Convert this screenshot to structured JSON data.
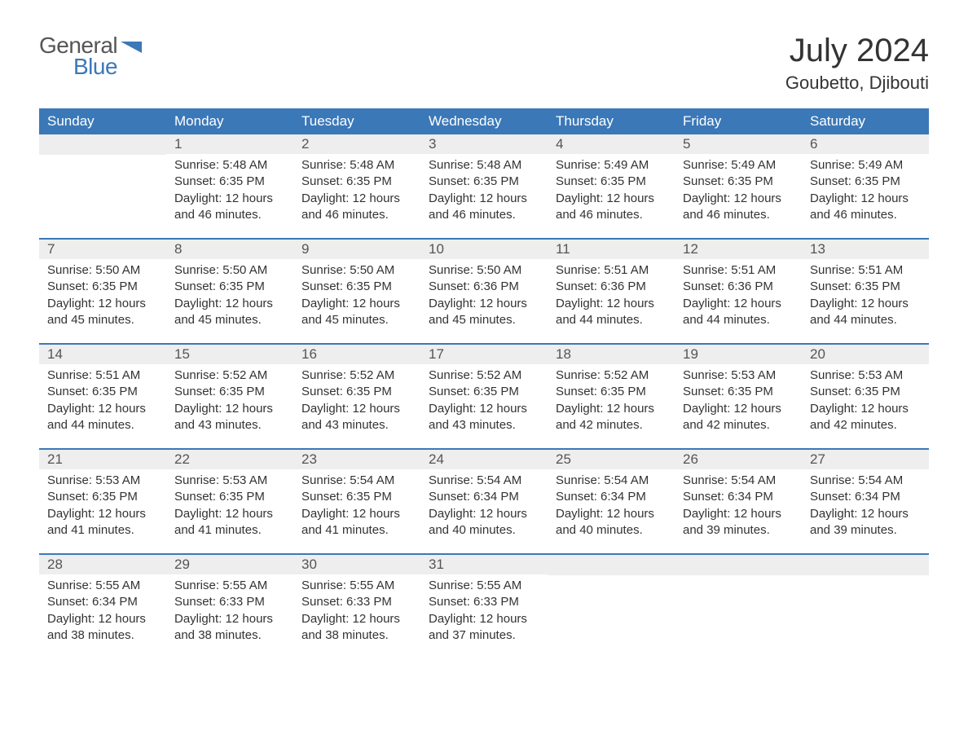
{
  "logo": {
    "text_gray": "General",
    "text_blue": "Blue",
    "shape_color": "#3b78b8"
  },
  "title": "July 2024",
  "location": "Goubetto, Djibouti",
  "colors": {
    "header_bg": "#3b78b8",
    "header_text": "#ffffff",
    "daynum_bg": "#eeeeee",
    "row_border": "#3b78b8",
    "text": "#333333"
  },
  "day_headers": [
    "Sunday",
    "Monday",
    "Tuesday",
    "Wednesday",
    "Thursday",
    "Friday",
    "Saturday"
  ],
  "weeks": [
    [
      null,
      {
        "n": "1",
        "sunrise": "Sunrise: 5:48 AM",
        "sunset": "Sunset: 6:35 PM",
        "daylight": "Daylight: 12 hours and 46 minutes."
      },
      {
        "n": "2",
        "sunrise": "Sunrise: 5:48 AM",
        "sunset": "Sunset: 6:35 PM",
        "daylight": "Daylight: 12 hours and 46 minutes."
      },
      {
        "n": "3",
        "sunrise": "Sunrise: 5:48 AM",
        "sunset": "Sunset: 6:35 PM",
        "daylight": "Daylight: 12 hours and 46 minutes."
      },
      {
        "n": "4",
        "sunrise": "Sunrise: 5:49 AM",
        "sunset": "Sunset: 6:35 PM",
        "daylight": "Daylight: 12 hours and 46 minutes."
      },
      {
        "n": "5",
        "sunrise": "Sunrise: 5:49 AM",
        "sunset": "Sunset: 6:35 PM",
        "daylight": "Daylight: 12 hours and 46 minutes."
      },
      {
        "n": "6",
        "sunrise": "Sunrise: 5:49 AM",
        "sunset": "Sunset: 6:35 PM",
        "daylight": "Daylight: 12 hours and 46 minutes."
      }
    ],
    [
      {
        "n": "7",
        "sunrise": "Sunrise: 5:50 AM",
        "sunset": "Sunset: 6:35 PM",
        "daylight": "Daylight: 12 hours and 45 minutes."
      },
      {
        "n": "8",
        "sunrise": "Sunrise: 5:50 AM",
        "sunset": "Sunset: 6:35 PM",
        "daylight": "Daylight: 12 hours and 45 minutes."
      },
      {
        "n": "9",
        "sunrise": "Sunrise: 5:50 AM",
        "sunset": "Sunset: 6:35 PM",
        "daylight": "Daylight: 12 hours and 45 minutes."
      },
      {
        "n": "10",
        "sunrise": "Sunrise: 5:50 AM",
        "sunset": "Sunset: 6:36 PM",
        "daylight": "Daylight: 12 hours and 45 minutes."
      },
      {
        "n": "11",
        "sunrise": "Sunrise: 5:51 AM",
        "sunset": "Sunset: 6:36 PM",
        "daylight": "Daylight: 12 hours and 44 minutes."
      },
      {
        "n": "12",
        "sunrise": "Sunrise: 5:51 AM",
        "sunset": "Sunset: 6:36 PM",
        "daylight": "Daylight: 12 hours and 44 minutes."
      },
      {
        "n": "13",
        "sunrise": "Sunrise: 5:51 AM",
        "sunset": "Sunset: 6:35 PM",
        "daylight": "Daylight: 12 hours and 44 minutes."
      }
    ],
    [
      {
        "n": "14",
        "sunrise": "Sunrise: 5:51 AM",
        "sunset": "Sunset: 6:35 PM",
        "daylight": "Daylight: 12 hours and 44 minutes."
      },
      {
        "n": "15",
        "sunrise": "Sunrise: 5:52 AM",
        "sunset": "Sunset: 6:35 PM",
        "daylight": "Daylight: 12 hours and 43 minutes."
      },
      {
        "n": "16",
        "sunrise": "Sunrise: 5:52 AM",
        "sunset": "Sunset: 6:35 PM",
        "daylight": "Daylight: 12 hours and 43 minutes."
      },
      {
        "n": "17",
        "sunrise": "Sunrise: 5:52 AM",
        "sunset": "Sunset: 6:35 PM",
        "daylight": "Daylight: 12 hours and 43 minutes."
      },
      {
        "n": "18",
        "sunrise": "Sunrise: 5:52 AM",
        "sunset": "Sunset: 6:35 PM",
        "daylight": "Daylight: 12 hours and 42 minutes."
      },
      {
        "n": "19",
        "sunrise": "Sunrise: 5:53 AM",
        "sunset": "Sunset: 6:35 PM",
        "daylight": "Daylight: 12 hours and 42 minutes."
      },
      {
        "n": "20",
        "sunrise": "Sunrise: 5:53 AM",
        "sunset": "Sunset: 6:35 PM",
        "daylight": "Daylight: 12 hours and 42 minutes."
      }
    ],
    [
      {
        "n": "21",
        "sunrise": "Sunrise: 5:53 AM",
        "sunset": "Sunset: 6:35 PM",
        "daylight": "Daylight: 12 hours and 41 minutes."
      },
      {
        "n": "22",
        "sunrise": "Sunrise: 5:53 AM",
        "sunset": "Sunset: 6:35 PM",
        "daylight": "Daylight: 12 hours and 41 minutes."
      },
      {
        "n": "23",
        "sunrise": "Sunrise: 5:54 AM",
        "sunset": "Sunset: 6:35 PM",
        "daylight": "Daylight: 12 hours and 41 minutes."
      },
      {
        "n": "24",
        "sunrise": "Sunrise: 5:54 AM",
        "sunset": "Sunset: 6:34 PM",
        "daylight": "Daylight: 12 hours and 40 minutes."
      },
      {
        "n": "25",
        "sunrise": "Sunrise: 5:54 AM",
        "sunset": "Sunset: 6:34 PM",
        "daylight": "Daylight: 12 hours and 40 minutes."
      },
      {
        "n": "26",
        "sunrise": "Sunrise: 5:54 AM",
        "sunset": "Sunset: 6:34 PM",
        "daylight": "Daylight: 12 hours and 39 minutes."
      },
      {
        "n": "27",
        "sunrise": "Sunrise: 5:54 AM",
        "sunset": "Sunset: 6:34 PM",
        "daylight": "Daylight: 12 hours and 39 minutes."
      }
    ],
    [
      {
        "n": "28",
        "sunrise": "Sunrise: 5:55 AM",
        "sunset": "Sunset: 6:34 PM",
        "daylight": "Daylight: 12 hours and 38 minutes."
      },
      {
        "n": "29",
        "sunrise": "Sunrise: 5:55 AM",
        "sunset": "Sunset: 6:33 PM",
        "daylight": "Daylight: 12 hours and 38 minutes."
      },
      {
        "n": "30",
        "sunrise": "Sunrise: 5:55 AM",
        "sunset": "Sunset: 6:33 PM",
        "daylight": "Daylight: 12 hours and 38 minutes."
      },
      {
        "n": "31",
        "sunrise": "Sunrise: 5:55 AM",
        "sunset": "Sunset: 6:33 PM",
        "daylight": "Daylight: 12 hours and 37 minutes."
      },
      null,
      null,
      null
    ]
  ]
}
